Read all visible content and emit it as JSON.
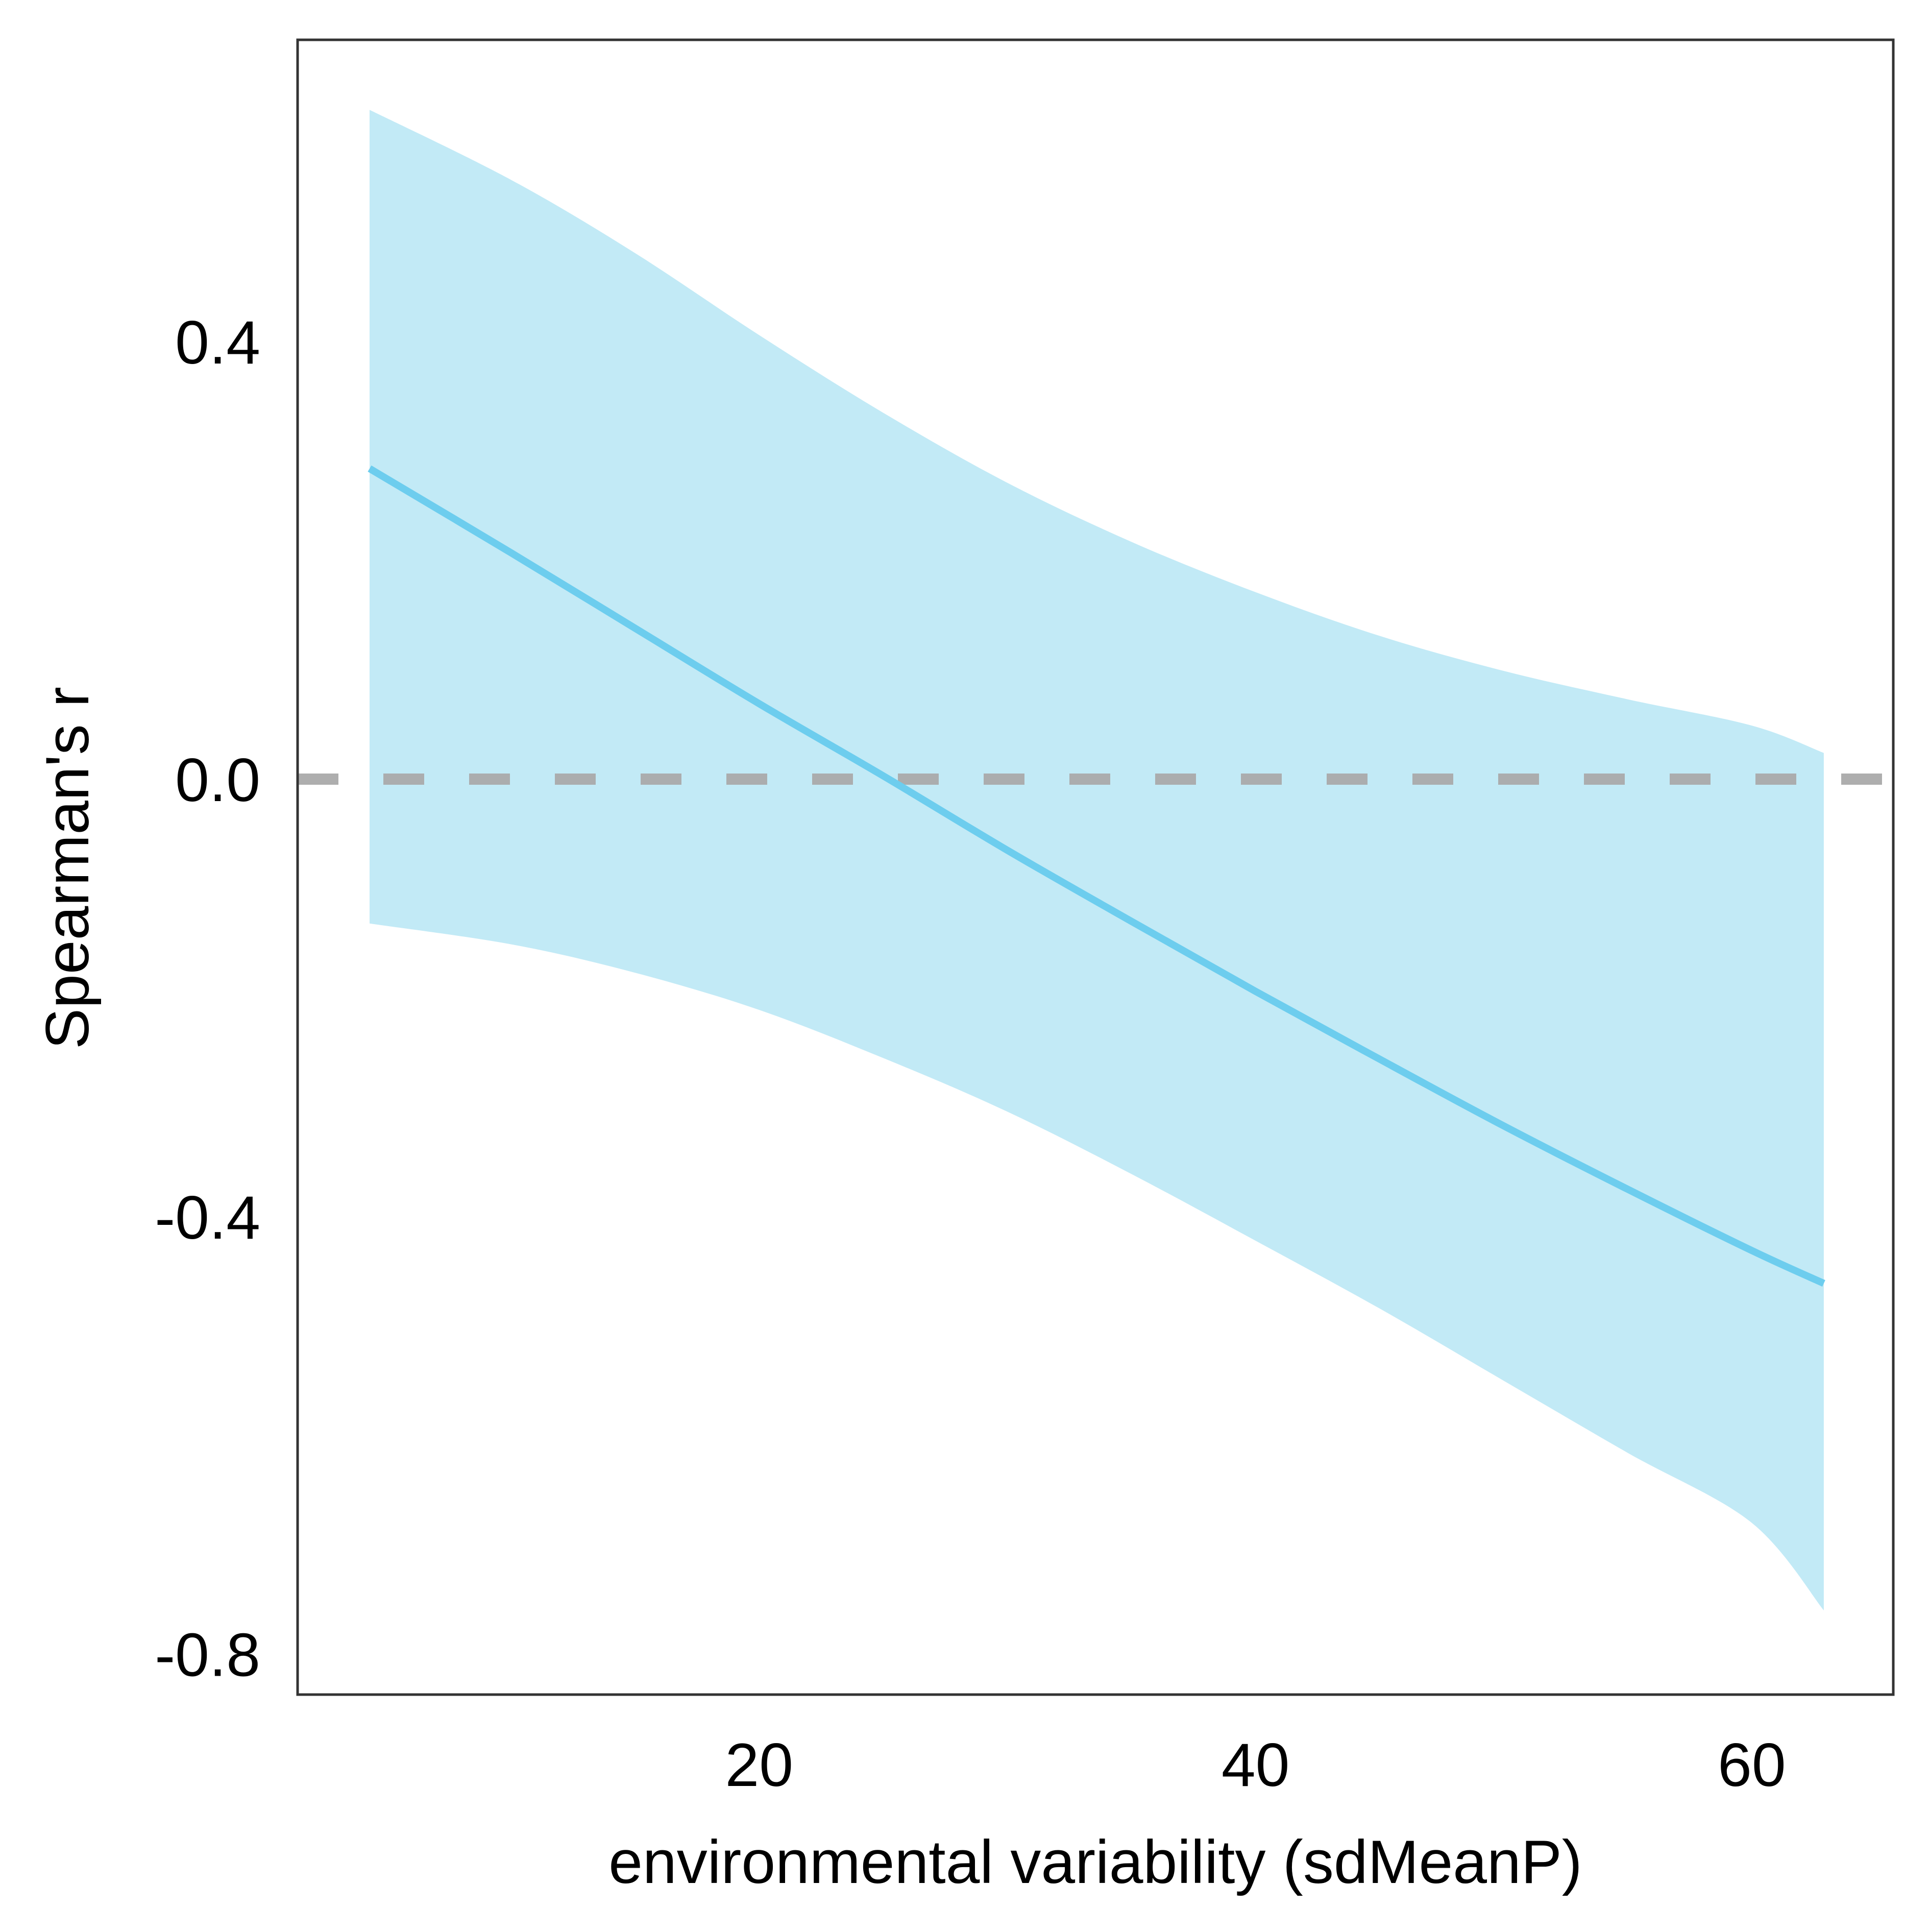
{
  "chart_data": {
    "type": "line",
    "title": "",
    "xlabel": "environmental variability (sdMeanP)",
    "ylabel": "Spearman's r",
    "xlim": [
      1.4,
      65.7
    ],
    "ylim": [
      -0.837,
      0.676
    ],
    "x_ticks": [
      {
        "value": 20,
        "label": "20"
      },
      {
        "value": 40,
        "label": "40"
      },
      {
        "value": 60,
        "label": "60"
      }
    ],
    "y_ticks": [
      {
        "value": 0.4,
        "label": "0.4"
      },
      {
        "value": 0.0,
        "label": "0.0"
      },
      {
        "value": -0.4,
        "label": "-0.4"
      },
      {
        "value": -0.8,
        "label": "-0.8"
      }
    ],
    "grid": false,
    "reference_line": {
      "y": 0.0,
      "style": "dashed",
      "color": "#aaaaaa"
    },
    "series": [
      {
        "x": [
          4.3,
          10,
          15,
          20,
          25,
          30,
          35,
          40,
          45,
          50,
          55,
          60,
          62.9
        ],
        "y": [
          0.284,
          0.207,
          0.138,
          0.069,
          0.003,
          -0.065,
          -0.13,
          -0.194,
          -0.256,
          -0.317,
          -0.375,
          -0.431,
          -0.461
        ],
        "ci_upper": [
          0.612,
          0.548,
          0.481,
          0.406,
          0.335,
          0.271,
          0.217,
          0.171,
          0.131,
          0.099,
          0.073,
          0.049,
          0.024
        ],
        "ci_lower": [
          -0.132,
          -0.151,
          -0.177,
          -0.211,
          -0.255,
          -0.304,
          -0.361,
          -0.422,
          -0.484,
          -0.55,
          -0.616,
          -0.68,
          -0.76
        ],
        "line_color": "#6dcdee",
        "band_color": "#c2eaf6"
      }
    ]
  }
}
